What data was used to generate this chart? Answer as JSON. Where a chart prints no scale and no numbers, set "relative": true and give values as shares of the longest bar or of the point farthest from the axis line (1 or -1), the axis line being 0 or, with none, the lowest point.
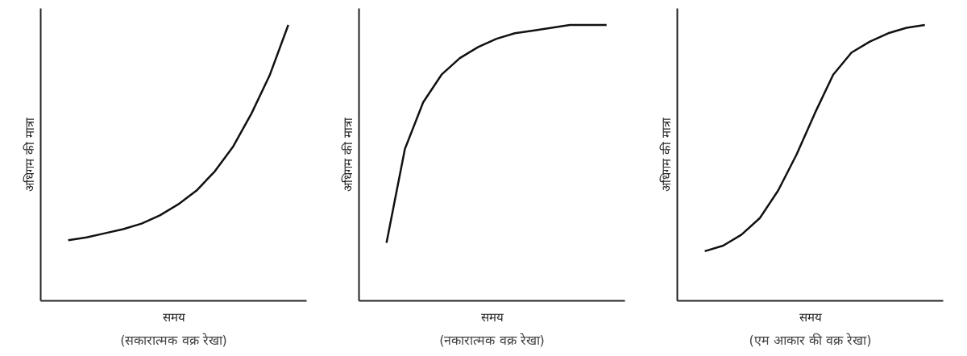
{
  "chart_data": [
    {
      "type": "line",
      "relative": true,
      "title": "(सकारात्मक वक्र रेखा)",
      "xlabel": "समय",
      "ylabel": "अधिगम की मात्रा",
      "categories": [
        null,
        null,
        null,
        null,
        null,
        null,
        null,
        null,
        null,
        null,
        null,
        null,
        null
      ],
      "series": [
        {
          "color": "#111111",
          "values": [
            0.22,
            0.23,
            0.245,
            0.26,
            0.28,
            0.31,
            0.35,
            0.4,
            0.47,
            0.56,
            0.68,
            0.82,
            1.0
          ]
        }
      ]
    },
    {
      "type": "line",
      "relative": true,
      "title": "(नकारात्मक वक्र रेखा)",
      "xlabel": "समय",
      "ylabel": "अधिगम की मात्रा",
      "categories": [
        null,
        null,
        null,
        null,
        null,
        null,
        null,
        null,
        null,
        null,
        null,
        null,
        null
      ],
      "series": [
        {
          "color": "#111111",
          "values": [
            0.21,
            0.55,
            0.72,
            0.82,
            0.88,
            0.92,
            0.95,
            0.97,
            0.98,
            0.99,
            1.0,
            1.0,
            1.0
          ]
        }
      ]
    },
    {
      "type": "line",
      "relative": true,
      "title": "(एम आकार की वक्र रेखा)",
      "xlabel": "समय",
      "ylabel": "अधिगम की मात्रा",
      "categories": [
        null,
        null,
        null,
        null,
        null,
        null,
        null,
        null,
        null,
        null,
        null,
        null,
        null
      ],
      "series": [
        {
          "color": "#111111",
          "values": [
            0.18,
            0.2,
            0.24,
            0.3,
            0.4,
            0.53,
            0.68,
            0.82,
            0.9,
            0.94,
            0.97,
            0.99,
            1.0
          ]
        }
      ]
    }
  ]
}
